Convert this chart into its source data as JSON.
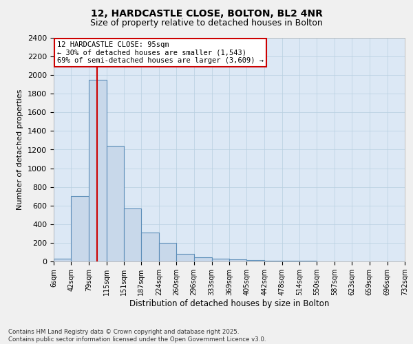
{
  "title1": "12, HARDCASTLE CLOSE, BOLTON, BL2 4NR",
  "title2": "Size of property relative to detached houses in Bolton",
  "xlabel": "Distribution of detached houses by size in Bolton",
  "ylabel": "Number of detached properties",
  "bins": [
    6,
    42,
    79,
    115,
    151,
    187,
    224,
    260,
    296,
    333,
    369,
    405,
    442,
    478,
    514,
    550,
    587,
    623,
    659,
    696,
    732
  ],
  "counts": [
    30,
    700,
    1950,
    1240,
    570,
    310,
    200,
    80,
    45,
    30,
    20,
    12,
    8,
    6,
    4,
    3,
    2,
    1,
    1,
    1
  ],
  "bar_color": "#c8d8ea",
  "bar_edge_color": "#5b8db8",
  "property_size": 95,
  "property_line_color": "#cc0000",
  "annotation_text": "12 HARDCASTLE CLOSE: 95sqm\n← 30% of detached houses are smaller (1,543)\n69% of semi-detached houses are larger (3,609) →",
  "annotation_box_color": "#ffffff",
  "annotation_box_edge_color": "#cc0000",
  "ylim": [
    0,
    2400
  ],
  "yticks": [
    0,
    200,
    400,
    600,
    800,
    1000,
    1200,
    1400,
    1600,
    1800,
    2000,
    2200,
    2400
  ],
  "footer1": "Contains HM Land Registry data © Crown copyright and database right 2025.",
  "footer2": "Contains public sector information licensed under the Open Government Licence v3.0.",
  "bg_color": "#f0f0f0",
  "plot_bg_color": "#dce8f5",
  "grid_color": "#b8cfe0"
}
